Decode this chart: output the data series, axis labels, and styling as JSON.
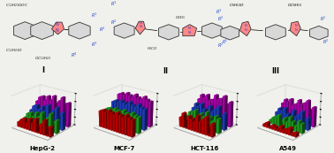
{
  "chart_labels": [
    "HepG-2",
    "MCF-7",
    "HCT-116",
    "A549"
  ],
  "bar_colors": [
    "#cc0000",
    "#22aa22",
    "#2244cc",
    "#bb00bb"
  ],
  "n_compounds": 12,
  "n_series": 4,
  "hepg2": [
    [
      15,
      25,
      30,
      20,
      35,
      25,
      40,
      20,
      30,
      45,
      25,
      30
    ],
    [
      20,
      35,
      40,
      30,
      45,
      35,
      50,
      30,
      40,
      55,
      30,
      40
    ],
    [
      35,
      50,
      55,
      45,
      55,
      45,
      65,
      45,
      55,
      65,
      45,
      55
    ],
    [
      55,
      70,
      75,
      65,
      80,
      70,
      85,
      65,
      75,
      88,
      70,
      75
    ]
  ],
  "mcf7": [
    [
      50,
      55,
      52,
      58,
      55,
      52,
      60,
      55,
      52,
      60,
      55,
      52
    ],
    [
      48,
      52,
      50,
      55,
      52,
      50,
      58,
      52,
      50,
      58,
      52,
      50
    ],
    [
      62,
      68,
      65,
      72,
      68,
      65,
      75,
      68,
      65,
      75,
      68,
      65
    ],
    [
      78,
      83,
      80,
      88,
      83,
      80,
      90,
      83,
      80,
      90,
      83,
      80
    ]
  ],
  "hct116": [
    [
      30,
      45,
      25,
      40,
      35,
      30,
      50,
      35,
      45,
      55,
      25,
      40
    ],
    [
      25,
      40,
      42,
      50,
      30,
      45,
      38,
      55,
      42,
      32,
      50,
      45
    ],
    [
      42,
      58,
      52,
      62,
      48,
      38,
      62,
      48,
      58,
      68,
      42,
      52
    ],
    [
      62,
      78,
      72,
      82,
      68,
      72,
      88,
      78,
      82,
      92,
      68,
      78
    ]
  ],
  "a549": [
    [
      8,
      15,
      5,
      12,
      10,
      8,
      18,
      10,
      15,
      22,
      8,
      12
    ],
    [
      12,
      22,
      28,
      35,
      18,
      30,
      22,
      40,
      28,
      18,
      35,
      30
    ],
    [
      28,
      42,
      38,
      48,
      32,
      22,
      48,
      32,
      42,
      52,
      28,
      38
    ],
    [
      48,
      62,
      58,
      68,
      52,
      58,
      72,
      62,
      68,
      78,
      52,
      62
    ]
  ],
  "background_color": "#f0f0ec",
  "struct1_label": "I",
  "struct2_label": "II",
  "struct3_label": "III"
}
